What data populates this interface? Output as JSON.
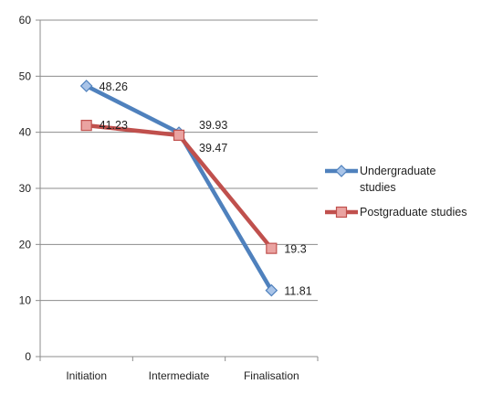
{
  "chart_data": {
    "type": "line",
    "categories": [
      "Initiation",
      "Intermediate",
      "Finalisation"
    ],
    "series": [
      {
        "name": "Undergraduate studies",
        "legend_lines": [
          "Undergraduate",
          "studies"
        ],
        "values": [
          48.26,
          39.93,
          11.81
        ],
        "labels": [
          "48.26",
          "39.93",
          "11.81"
        ],
        "color": "#4f81bd",
        "marker": "diamond"
      },
      {
        "name": "Postgraduate studies",
        "legend_lines": [
          "Postgraduate studies"
        ],
        "values": [
          41.23,
          39.47,
          19.3
        ],
        "labels": [
          "41.23",
          "39.47",
          "19.3"
        ],
        "color": "#c0504d",
        "marker": "square"
      }
    ],
    "ylim": [
      0,
      60
    ],
    "yticks": [
      0,
      10,
      20,
      30,
      40,
      50,
      60
    ],
    "grid": true,
    "legend": "right"
  }
}
